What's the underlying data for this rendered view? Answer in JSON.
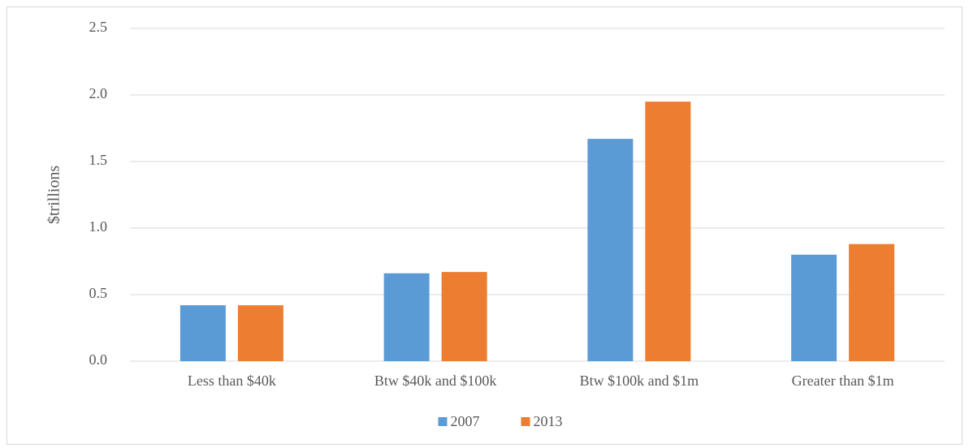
{
  "chart_data": {
    "type": "bar",
    "y_label": "$trillions",
    "categories": [
      "Less than $40k",
      "Btw $40k and $100k",
      "Btw $100k and $1m",
      "Greater than $1m"
    ],
    "series": [
      {
        "name": "2007",
        "color": "#5b9bd5",
        "values": [
          0.42,
          0.66,
          1.67,
          0.8
        ]
      },
      {
        "name": "2013",
        "color": "#ed7d31",
        "values": [
          0.42,
          0.67,
          1.95,
          0.88
        ]
      }
    ],
    "ylim": [
      0,
      2.5
    ],
    "yticks": [
      {
        "value": 0,
        "label": "0.0"
      },
      0.5,
      {
        "value": 1,
        "label": "1.0"
      },
      1.5,
      {
        "value": 2,
        "label": "2.0"
      },
      2.5
    ],
    "grid": true,
    "legend": "bottom"
  }
}
